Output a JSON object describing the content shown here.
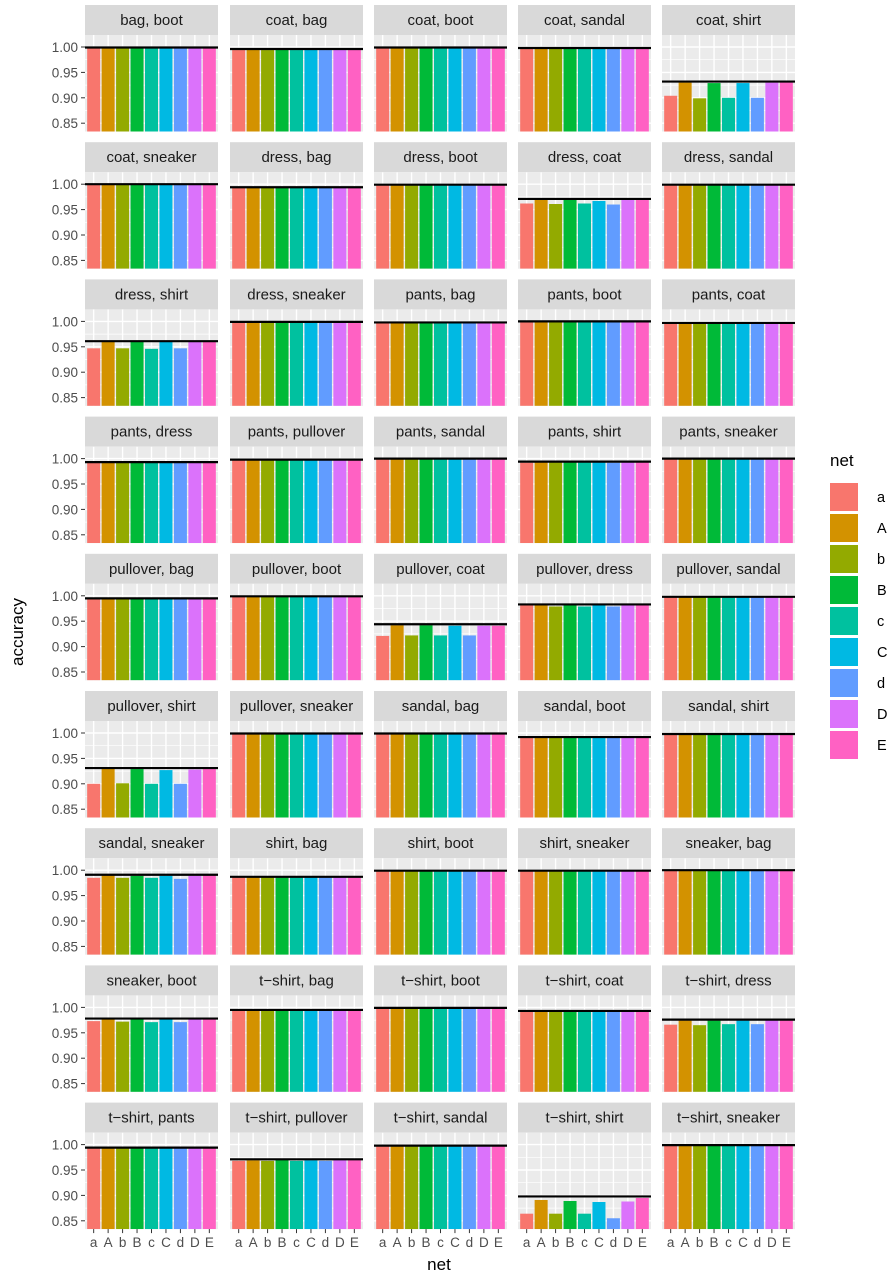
{
  "chart_data": {
    "type": "bar",
    "xlabel": "net",
    "ylabel": "accuracy",
    "ylim": [
      0.85,
      1.0
    ],
    "y_ticks": [
      "0.85",
      "0.90",
      "0.95",
      "1.00"
    ],
    "categories": [
      "a",
      "A",
      "b",
      "B",
      "c",
      "C",
      "d",
      "D",
      "E"
    ],
    "category_colors": [
      "#F8766D",
      "#D39200",
      "#93AA00",
      "#00BA38",
      "#00C19F",
      "#00B9E3",
      "#619CFF",
      "#DB72FB",
      "#FF61C3"
    ],
    "legend": {
      "title": "net",
      "position": "right",
      "labels": [
        "a",
        "A",
        "b",
        "B",
        "c",
        "C",
        "d",
        "D",
        "E"
      ]
    },
    "grid": true,
    "reference_line": "black horizontal line at the best net accuracy per panel",
    "panels": [
      {
        "title": "bag, boot",
        "values": [
          0.999,
          0.999,
          0.999,
          0.999,
          0.999,
          0.999,
          0.999,
          0.999,
          0.999
        ],
        "ref": 0.999
      },
      {
        "title": "coat, bag",
        "values": [
          0.994,
          0.995,
          0.994,
          0.995,
          0.994,
          0.995,
          0.994,
          0.995,
          0.995
        ],
        "ref": 0.996
      },
      {
        "title": "coat, boot",
        "values": [
          0.999,
          0.999,
          0.999,
          0.999,
          0.999,
          0.999,
          0.999,
          0.999,
          0.999
        ],
        "ref": 0.999
      },
      {
        "title": "coat, sandal",
        "values": [
          0.998,
          0.998,
          0.998,
          0.998,
          0.998,
          0.998,
          0.998,
          0.998,
          0.998
        ],
        "ref": 0.998
      },
      {
        "title": "coat, shirt",
        "values": [
          0.904,
          0.93,
          0.899,
          0.929,
          0.9,
          0.929,
          0.9,
          0.93,
          0.931
        ],
        "ref": 0.932
      },
      {
        "title": "coat, sneaker",
        "values": [
          1.0,
          1.0,
          1.0,
          1.0,
          1.0,
          1.0,
          1.0,
          1.0,
          1.0
        ],
        "ref": 1.0
      },
      {
        "title": "dress, bag",
        "values": [
          0.993,
          0.994,
          0.993,
          0.995,
          0.993,
          0.994,
          0.993,
          0.994,
          0.994
        ],
        "ref": 0.994
      },
      {
        "title": "dress, boot",
        "values": [
          0.999,
          0.999,
          0.999,
          0.999,
          0.999,
          0.999,
          0.999,
          0.999,
          0.999
        ],
        "ref": 0.999
      },
      {
        "title": "dress, coat",
        "values": [
          0.962,
          0.969,
          0.961,
          0.97,
          0.962,
          0.967,
          0.96,
          0.969,
          0.97
        ],
        "ref": 0.971
      },
      {
        "title": "dress, sandal",
        "values": [
          0.999,
          0.999,
          0.999,
          0.999,
          0.999,
          0.999,
          0.999,
          0.999,
          0.999
        ],
        "ref": 0.999
      },
      {
        "title": "dress, shirt",
        "values": [
          0.947,
          0.96,
          0.947,
          0.96,
          0.946,
          0.96,
          0.947,
          0.96,
          0.96
        ],
        "ref": 0.961
      },
      {
        "title": "dress, sneaker",
        "values": [
          0.999,
          0.999,
          0.999,
          0.999,
          0.999,
          0.999,
          0.999,
          0.999,
          0.999
        ],
        "ref": 0.999
      },
      {
        "title": "pants, bag",
        "values": [
          0.998,
          0.998,
          0.998,
          0.998,
          0.998,
          0.998,
          0.998,
          0.998,
          0.998
        ],
        "ref": 0.998
      },
      {
        "title": "pants, boot",
        "values": [
          1.0,
          1.0,
          1.0,
          1.0,
          1.0,
          1.0,
          1.0,
          1.0,
          1.0
        ],
        "ref": 1.0
      },
      {
        "title": "pants, coat",
        "values": [
          0.996,
          0.997,
          0.996,
          0.997,
          0.996,
          0.997,
          0.996,
          0.997,
          0.997
        ],
        "ref": 0.997
      },
      {
        "title": "pants, dress",
        "values": [
          0.992,
          0.993,
          0.992,
          0.993,
          0.992,
          0.993,
          0.992,
          0.993,
          0.993
        ],
        "ref": 0.993
      },
      {
        "title": "pants, pullover",
        "values": [
          0.997,
          0.998,
          0.997,
          0.998,
          0.997,
          0.998,
          0.997,
          0.998,
          0.998
        ],
        "ref": 0.998
      },
      {
        "title": "pants, sandal",
        "values": [
          1.0,
          1.0,
          1.0,
          1.0,
          1.0,
          1.0,
          1.0,
          1.0,
          1.0
        ],
        "ref": 1.0
      },
      {
        "title": "pants, shirt",
        "values": [
          0.992,
          0.994,
          0.993,
          0.995,
          0.993,
          0.994,
          0.992,
          0.994,
          0.994
        ],
        "ref": 0.994
      },
      {
        "title": "pants, sneaker",
        "values": [
          1.0,
          1.0,
          1.0,
          1.0,
          1.0,
          1.0,
          1.0,
          1.0,
          1.0
        ],
        "ref": 1.0
      },
      {
        "title": "pullover, bag",
        "values": [
          0.994,
          0.995,
          0.994,
          0.995,
          0.994,
          0.995,
          0.994,
          0.995,
          0.995
        ],
        "ref": 0.995
      },
      {
        "title": "pullover, boot",
        "values": [
          0.999,
          0.999,
          0.999,
          0.999,
          0.999,
          0.999,
          0.999,
          0.999,
          0.999
        ],
        "ref": 0.999
      },
      {
        "title": "pullover, coat",
        "values": [
          0.921,
          0.942,
          0.922,
          0.942,
          0.922,
          0.941,
          0.922,
          0.941,
          0.941
        ],
        "ref": 0.944
      },
      {
        "title": "pullover, dress",
        "values": [
          0.981,
          0.982,
          0.979,
          0.982,
          0.979,
          0.981,
          0.979,
          0.982,
          0.982
        ],
        "ref": 0.983
      },
      {
        "title": "pullover, sandal",
        "values": [
          0.998,
          0.998,
          0.998,
          0.998,
          0.998,
          0.998,
          0.998,
          0.998,
          0.998
        ],
        "ref": 0.998
      },
      {
        "title": "pullover, shirt",
        "values": [
          0.9,
          0.93,
          0.901,
          0.929,
          0.9,
          0.927,
          0.9,
          0.928,
          0.929
        ],
        "ref": 0.931
      },
      {
        "title": "pullover, sneaker",
        "values": [
          0.999,
          0.999,
          0.999,
          0.999,
          0.999,
          0.999,
          0.999,
          0.999,
          0.999
        ],
        "ref": 0.999
      },
      {
        "title": "sandal, bag",
        "values": [
          0.999,
          0.999,
          0.999,
          0.999,
          0.999,
          0.999,
          0.999,
          0.999,
          0.999
        ],
        "ref": 0.999
      },
      {
        "title": "sandal, boot",
        "values": [
          0.991,
          0.992,
          0.991,
          0.992,
          0.991,
          0.992,
          0.991,
          0.992,
          0.992
        ],
        "ref": 0.992
      },
      {
        "title": "sandal, shirt",
        "values": [
          0.997,
          0.998,
          0.997,
          0.998,
          0.997,
          0.998,
          0.997,
          0.998,
          0.998
        ],
        "ref": 0.998
      },
      {
        "title": "sandal, sneaker",
        "values": [
          0.985,
          0.99,
          0.985,
          0.989,
          0.985,
          0.989,
          0.983,
          0.989,
          0.99
        ],
        "ref": 0.991
      },
      {
        "title": "shirt, bag",
        "values": [
          0.986,
          0.987,
          0.986,
          0.987,
          0.986,
          0.987,
          0.986,
          0.987,
          0.987
        ],
        "ref": 0.987
      },
      {
        "title": "shirt, boot",
        "values": [
          0.999,
          0.999,
          0.999,
          0.999,
          0.999,
          0.999,
          0.999,
          0.999,
          0.999
        ],
        "ref": 0.999
      },
      {
        "title": "shirt, sneaker",
        "values": [
          0.999,
          0.999,
          0.999,
          0.999,
          0.999,
          0.999,
          0.999,
          0.999,
          0.999
        ],
        "ref": 0.999
      },
      {
        "title": "sneaker, bag",
        "values": [
          1.0,
          1.0,
          1.0,
          1.0,
          1.0,
          1.0,
          1.0,
          1.0,
          1.0
        ],
        "ref": 1.0
      },
      {
        "title": "sneaker, boot",
        "values": [
          0.973,
          0.977,
          0.972,
          0.977,
          0.971,
          0.977,
          0.971,
          0.977,
          0.977
        ],
        "ref": 0.978
      },
      {
        "title": "t−shirt, bag",
        "values": [
          0.994,
          0.995,
          0.994,
          0.995,
          0.994,
          0.995,
          0.994,
          0.995,
          0.995
        ],
        "ref": 0.995
      },
      {
        "title": "t−shirt, boot",
        "values": [
          0.999,
          0.999,
          0.999,
          0.999,
          0.999,
          0.999,
          0.999,
          0.999,
          0.999
        ],
        "ref": 0.999
      },
      {
        "title": "t−shirt, coat",
        "values": [
          0.991,
          0.993,
          0.991,
          0.994,
          0.991,
          0.992,
          0.991,
          0.992,
          0.993
        ],
        "ref": 0.993
      },
      {
        "title": "t−shirt, dress",
        "values": [
          0.966,
          0.974,
          0.965,
          0.974,
          0.967,
          0.974,
          0.967,
          0.975,
          0.975
        ],
        "ref": 0.976
      },
      {
        "title": "t−shirt, pants",
        "values": [
          0.993,
          0.994,
          0.993,
          0.994,
          0.993,
          0.994,
          0.993,
          0.994,
          0.994
        ],
        "ref": 0.994
      },
      {
        "title": "t−shirt, pullover",
        "values": [
          0.968,
          0.969,
          0.968,
          0.97,
          0.968,
          0.969,
          0.968,
          0.97,
          0.97
        ],
        "ref": 0.971
      },
      {
        "title": "t−shirt, sandal",
        "values": [
          0.998,
          0.999,
          0.998,
          0.999,
          0.998,
          0.998,
          0.998,
          0.998,
          0.998
        ],
        "ref": 0.998
      },
      {
        "title": "t−shirt, shirt",
        "values": [
          0.864,
          0.891,
          0.864,
          0.889,
          0.864,
          0.887,
          0.855,
          0.888,
          0.895
        ],
        "ref": 0.898
      },
      {
        "title": "t−shirt, sneaker",
        "values": [
          0.999,
          0.999,
          0.999,
          0.999,
          0.999,
          0.999,
          0.999,
          0.999,
          0.999
        ],
        "ref": 0.999
      }
    ]
  }
}
